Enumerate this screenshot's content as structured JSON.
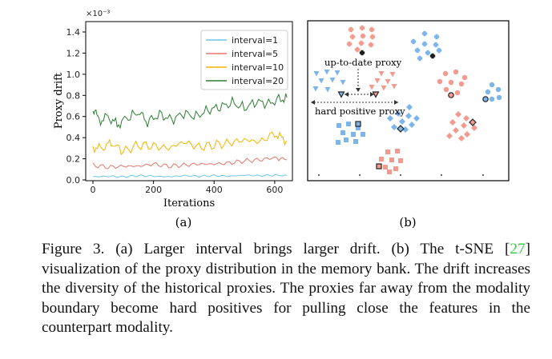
{
  "panel_a": {
    "label": "(a)",
    "exponent": "×10⁻³",
    "chart_data": {
      "type": "line",
      "xlabel": "Iterations",
      "ylabel": "Proxy drift",
      "xlim": [
        0,
        660
      ],
      "ylim": [
        0,
        1.45
      ],
      "x_ticks": [
        "0",
        "200",
        "400",
        "600"
      ],
      "y_ticks": [
        "0.0",
        "0.2",
        "0.4",
        "0.6",
        "0.8",
        "1.0",
        "1.2",
        "1.4"
      ],
      "grid": false,
      "legend": "top-right",
      "series": [
        {
          "name": "interval=1",
          "color": "#6ec6e6",
          "x": [
            0,
            50,
            100,
            150,
            200,
            250,
            300,
            350,
            400,
            450,
            500,
            550,
            600,
            640
          ],
          "values": [
            0.03,
            0.035,
            0.03,
            0.04,
            0.035,
            0.03,
            0.04,
            0.035,
            0.04,
            0.035,
            0.045,
            0.04,
            0.045,
            0.04
          ]
        },
        {
          "name": "interval=5",
          "color": "#e8766a",
          "x": [
            0,
            50,
            100,
            150,
            200,
            250,
            300,
            350,
            400,
            450,
            500,
            550,
            600,
            640
          ],
          "values": [
            0.14,
            0.12,
            0.13,
            0.13,
            0.15,
            0.13,
            0.14,
            0.15,
            0.15,
            0.16,
            0.18,
            0.19,
            0.21,
            0.19
          ]
        },
        {
          "name": "interval=10",
          "color": "#f2b400",
          "x": [
            0,
            30,
            60,
            100,
            150,
            200,
            250,
            300,
            350,
            400,
            450,
            500,
            550,
            600,
            620,
            640
          ],
          "values": [
            0.31,
            0.3,
            0.35,
            0.27,
            0.33,
            0.32,
            0.3,
            0.36,
            0.31,
            0.33,
            0.35,
            0.38,
            0.36,
            0.44,
            0.4,
            0.37
          ]
        },
        {
          "name": "interval=20",
          "color": "#2e7d32",
          "x": [
            0,
            20,
            50,
            80,
            110,
            150,
            180,
            220,
            260,
            300,
            340,
            380,
            420,
            460,
            500,
            540,
            580,
            620,
            640
          ],
          "values": [
            0.68,
            0.56,
            0.6,
            0.52,
            0.58,
            0.64,
            0.55,
            0.62,
            0.57,
            0.63,
            0.6,
            0.66,
            0.69,
            0.73,
            0.68,
            0.74,
            0.72,
            0.77,
            0.78
          ]
        }
      ]
    }
  },
  "panel_b": {
    "label": "(b)",
    "annotation_up_to_date": "up-to-date proxy",
    "annotation_hard_positive": "hard positive proxy",
    "colors": {
      "blue": "#7cb5ec",
      "red": "#f29a8e",
      "dark_outline": "#222222"
    }
  },
  "caption": {
    "prefix": "Figure 3. (a) Larger interval brings larger drift. (b) The t-SNE [",
    "ref": "27",
    "suffix": "] visualization of the proxy distribution in the memory bank. The drift increases the diversity of the historical proxies. The proxies far away from the modality boundary become hard positives for pulling close the features in the counterpart modality."
  }
}
